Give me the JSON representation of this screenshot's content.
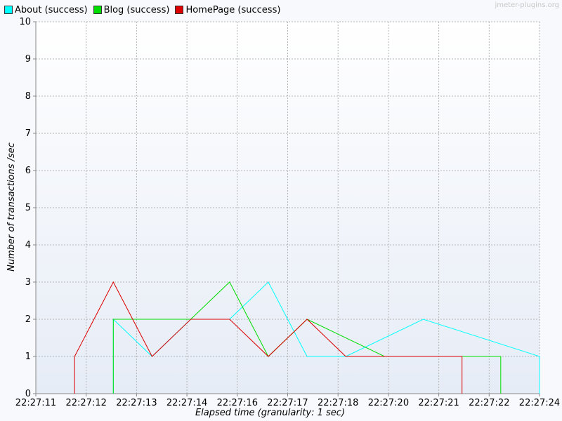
{
  "watermark": "jmeter-plugins.org",
  "legend": [
    {
      "label": "About (success)",
      "color": "#00ffff"
    },
    {
      "label": "Blog (success)",
      "color": "#00dd00"
    },
    {
      "label": "HomePage (success)",
      "color": "#dd0000"
    }
  ],
  "chart_data": {
    "type": "line",
    "title": "",
    "xlabel": "Elapsed time (granularity: 1 sec)",
    "ylabel": "Number of transactions /sec",
    "ylim": [
      0,
      10
    ],
    "yticks": [
      0,
      1,
      2,
      3,
      4,
      5,
      6,
      7,
      8,
      9,
      10
    ],
    "xticks": [
      "22:27:11",
      "22:27:12",
      "22:27:13",
      "22:27:14",
      "22:27:16",
      "22:27:17",
      "22:27:18",
      "22:27:20",
      "22:27:21",
      "22:27:22",
      "22:27:24"
    ],
    "xlim": [
      "22:27:11",
      "22:27:24"
    ],
    "grid": true,
    "legend_position": "top-left",
    "series": [
      {
        "name": "About (success)",
        "color": "#00ffff",
        "x": [
          "22:27:13",
          "22:27:13",
          "22:27:14",
          "22:27:15",
          "22:27:16",
          "22:27:17",
          "22:27:18",
          "22:27:19",
          "22:27:21",
          "22:27:24",
          "22:27:24"
        ],
        "y": [
          0,
          2,
          1,
          2,
          2,
          3,
          1,
          1,
          2,
          1,
          0
        ]
      },
      {
        "name": "Blog (success)",
        "color": "#00dd00",
        "x": [
          "22:27:13",
          "22:27:13",
          "22:27:14",
          "22:27:15",
          "22:27:16",
          "22:27:17",
          "22:27:18",
          "22:27:20",
          "22:27:23",
          "22:27:23"
        ],
        "y": [
          0,
          2,
          2,
          2,
          3,
          1,
          2,
          1,
          1,
          0
        ]
      },
      {
        "name": "HomePage (success)",
        "color": "#dd0000",
        "x": [
          "22:27:12",
          "22:27:12",
          "22:27:13",
          "22:27:14",
          "22:27:15",
          "22:27:16",
          "22:27:17",
          "22:27:18",
          "22:27:19",
          "22:27:22",
          "22:27:22"
        ],
        "y": [
          0,
          1,
          3,
          1,
          2,
          2,
          1,
          2,
          1,
          1,
          0
        ]
      }
    ]
  }
}
